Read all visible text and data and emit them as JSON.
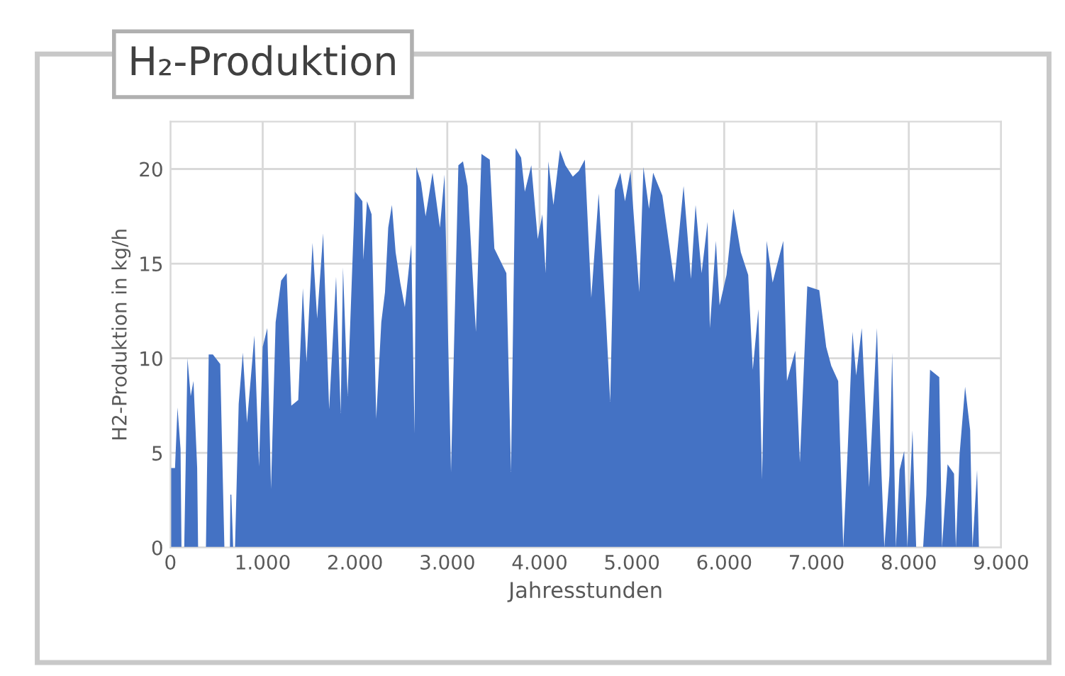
{
  "chart_data": {
    "type": "area",
    "title": "H₂-Produktion",
    "xlabel": "Jahresstunden",
    "ylabel": "H2-Produktion in kg/h",
    "x": [
      0,
      50,
      77,
      110,
      120,
      150,
      185,
      220,
      250,
      290,
      300,
      385,
      415,
      460,
      540,
      565,
      585,
      645,
      650,
      660,
      680,
      700,
      740,
      785,
      830,
      910,
      960,
      1000,
      1050,
      1090,
      1140,
      1200,
      1260,
      1310,
      1385,
      1435,
      1475,
      1540,
      1590,
      1655,
      1720,
      1795,
      1845,
      1870,
      1920,
      2000,
      2080,
      2090,
      2130,
      2180,
      2230,
      2285,
      2325,
      2360,
      2400,
      2440,
      2490,
      2540,
      2610,
      2645,
      2665,
      2715,
      2765,
      2840,
      2920,
      2970,
      3040,
      3120,
      3170,
      3220,
      3310,
      3370,
      3460,
      3510,
      3640,
      3690,
      3740,
      3800,
      3840,
      3910,
      3980,
      4030,
      4065,
      4095,
      4150,
      4220,
      4280,
      4360,
      4425,
      4490,
      4560,
      4640,
      4720,
      4765,
      4815,
      4875,
      4925,
      4985,
      5080,
      5125,
      5185,
      5230,
      5330,
      5460,
      5560,
      5640,
      5690,
      5755,
      5820,
      5845,
      5910,
      5950,
      6025,
      6100,
      6180,
      6260,
      6310,
      6370,
      6410,
      6460,
      6525,
      6565,
      6640,
      6680,
      6770,
      6820,
      6900,
      7030,
      7105,
      7160,
      7235,
      7290,
      7340,
      7390,
      7430,
      7490,
      7570,
      7655,
      7695,
      7735,
      7790,
      7820,
      7860,
      7900,
      7950,
      7985,
      8040,
      8080,
      8155,
      8190,
      8230,
      8330,
      8360,
      8420,
      8490,
      8510,
      8550,
      8610,
      8665,
      8690,
      8740,
      8760,
      8800
    ],
    "values": [
      4.2,
      4.2,
      7.4,
      5.2,
      0,
      0,
      10,
      8,
      8.8,
      4.2,
      0,
      0,
      10.2,
      10.2,
      9.7,
      4.2,
      0,
      0,
      2.8,
      2.8,
      0,
      0,
      7.6,
      10.3,
      6.6,
      11.2,
      4.3,
      10.6,
      11.6,
      3.1,
      11.9,
      14.1,
      14.5,
      7.5,
      7.8,
      13.7,
      9.8,
      16.1,
      12.1,
      16.6,
      7.3,
      14.3,
      7.1,
      14.8,
      8,
      18.8,
      18.3,
      15.2,
      18.3,
      17.6,
      6.8,
      11.9,
      13.5,
      16.9,
      18.1,
      15.6,
      14,
      12.7,
      16,
      6,
      20.1,
      19.3,
      17.5,
      19.8,
      16.9,
      19.7,
      4,
      20.2,
      20.4,
      19.1,
      11.4,
      20.8,
      20.5,
      15.8,
      14.5,
      4,
      21.1,
      20.6,
      18.8,
      20.2,
      16.3,
      17.6,
      14.5,
      20.4,
      18.1,
      21,
      20.2,
      19.6,
      19.9,
      20.5,
      13.2,
      18.7,
      12,
      7.7,
      18.9,
      19.8,
      18.3,
      19.9,
      13.5,
      20.1,
      17.9,
      19.8,
      18.6,
      14,
      19.1,
      14.2,
      18.1,
      14.5,
      17.2,
      11.6,
      16.2,
      12.8,
      14.4,
      17.9,
      15.6,
      14.4,
      9.4,
      12.6,
      3.6,
      16.2,
      14,
      14.8,
      16.2,
      8.8,
      10.4,
      4.5,
      13.8,
      13.6,
      10.6,
      9.6,
      8.8,
      0,
      5.4,
      11.4,
      9.1,
      11.6,
      3.2,
      11.6,
      5.1,
      0,
      3.8,
      10.3,
      0,
      4.1,
      5.1,
      0,
      6.2,
      0,
      0,
      2.8,
      9.4,
      9,
      0,
      4.4,
      3.9,
      0,
      4.9,
      8.5,
      6.2,
      0,
      4.1,
      0,
      0
    ],
    "color": "#4472c4",
    "xlim": [
      0,
      9000
    ],
    "ylim": [
      0,
      22.5
    ],
    "xticks": [
      0,
      {
        "value": 1000,
        "label": "1.000"
      },
      {
        "value": 2000,
        "label": "2.000"
      },
      {
        "value": 3000,
        "label": "3.000"
      },
      {
        "value": 4000,
        "label": "4.000"
      },
      {
        "value": 5000,
        "label": "5.000"
      },
      {
        "value": 6000,
        "label": "6.000"
      },
      {
        "value": 7000,
        "label": "7.000"
      },
      {
        "value": 8000,
        "label": "8.000"
      },
      {
        "value": 9000,
        "label": "9.000"
      }
    ],
    "yticks": [
      0,
      5,
      10,
      15,
      20
    ],
    "grid": true
  }
}
